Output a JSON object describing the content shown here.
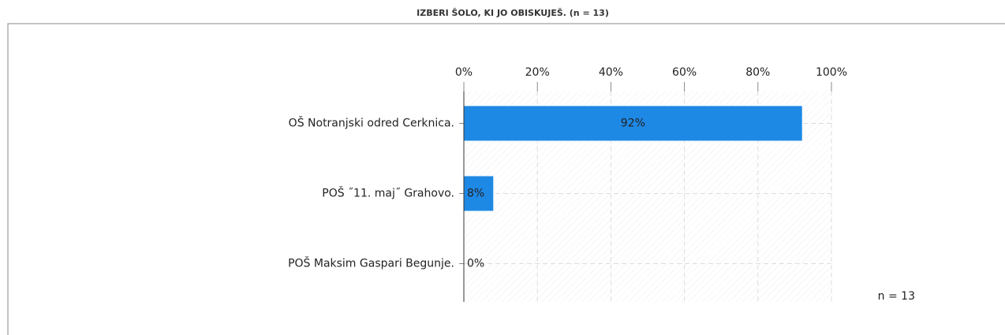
{
  "chart_data": {
    "type": "bar",
    "orientation": "horizontal",
    "title": "IZBERI ŠOLO, KI JO OBISKUJEŠ. (n = 13)",
    "categories": [
      "OŠ Notranjski odred Cerknica.",
      "POŠ ˝11. maj˝ Grahovo.",
      "POŠ Maksim Gaspari Begunje."
    ],
    "values": [
      92,
      8,
      0
    ],
    "value_labels": [
      "92%",
      "8%",
      "0%"
    ],
    "color": "#1e88e5",
    "xlim": [
      0,
      100
    ],
    "xticks": [
      {
        "value": 0,
        "label": "0%"
      },
      {
        "value": 20,
        "label": "20%"
      },
      {
        "value": 40,
        "label": "40%"
      },
      {
        "value": 60,
        "label": "60%"
      },
      {
        "value": 80,
        "label": "80%"
      },
      {
        "value": 100,
        "label": "100%"
      }
    ],
    "grid": true,
    "annotation": "n = 13"
  }
}
